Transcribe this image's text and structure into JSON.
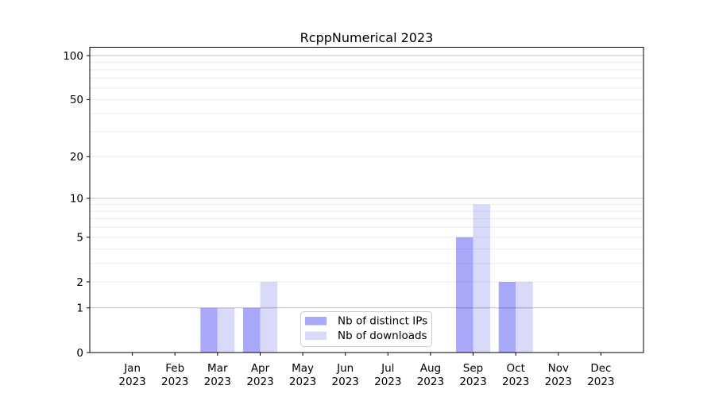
{
  "chart_data": {
    "type": "bar",
    "title": "RcppNumerical 2023",
    "categories": [
      "Jan",
      "Feb",
      "Mar",
      "Apr",
      "May",
      "Jun",
      "Jul",
      "Aug",
      "Sep",
      "Oct",
      "Nov",
      "Dec"
    ],
    "category_year": "2023",
    "series": [
      {
        "name": "Nb of distinct IPs",
        "color": "#a9a9fa",
        "values": [
          0,
          0,
          1,
          1,
          0,
          0,
          0,
          0,
          5,
          2,
          0,
          0
        ]
      },
      {
        "name": "Nb of downloads",
        "color": "#d9d9fa",
        "values": [
          0,
          0,
          1,
          2,
          0,
          0,
          0,
          0,
          9,
          2,
          0,
          0
        ]
      }
    ],
    "y_axis": {
      "scale": "log1p",
      "range": [
        0,
        114
      ],
      "ticks": [
        0,
        1,
        2,
        5,
        10,
        20,
        50,
        100
      ],
      "major_gridlines": [
        1,
        10,
        100
      ],
      "minor_gridlines": [
        2,
        3,
        4,
        5,
        6,
        7,
        8,
        9,
        20,
        30,
        40,
        50,
        60,
        70,
        80,
        90
      ]
    },
    "xlabel": "",
    "ylabel": "",
    "grid": true,
    "legend_position": "lower center"
  },
  "colors": {
    "background": "#ffffff",
    "text": "#000000",
    "spine": "#000000",
    "grid_major": "#c2c2c2",
    "grid_minor": "#ededed",
    "legend_border": "#cccccc",
    "legend_background": "#ffffff"
  }
}
